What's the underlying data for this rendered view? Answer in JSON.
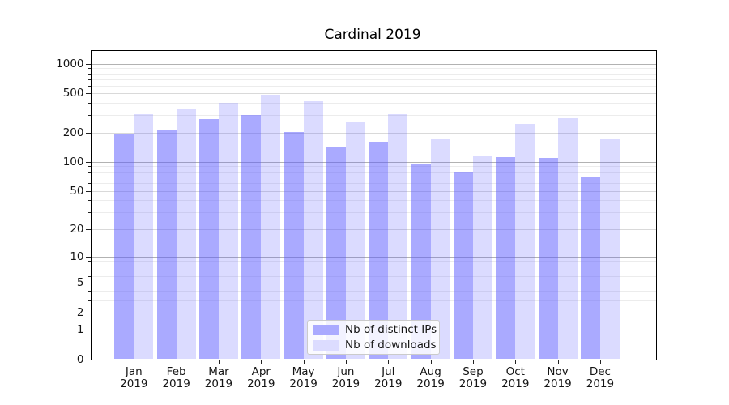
{
  "title": "Cardinal 2019",
  "chart_data": {
    "type": "bar",
    "title": "Cardinal 2019",
    "categories": [
      "Jan 2019",
      "Feb 2019",
      "Mar 2019",
      "Apr 2019",
      "May 2019",
      "Jun 2019",
      "Jul 2019",
      "Aug 2019",
      "Sep 2019",
      "Oct 2019",
      "Nov 2019",
      "Dec 2019"
    ],
    "series": [
      {
        "name": "Nb of distinct IPs",
        "color": "#aaaaff",
        "values": [
          192,
          214,
          275,
          300,
          201,
          143,
          162,
          96,
          79,
          112,
          110,
          70
        ]
      },
      {
        "name": "Nb of downloads",
        "color": "#dcdcff",
        "values": [
          310,
          350,
          400,
          480,
          420,
          260,
          310,
          172,
          115,
          245,
          280,
          170
        ]
      }
    ],
    "yscale": "log1p",
    "ylim": [
      0,
      1375
    ],
    "y_ticks": [
      1000,
      500,
      200,
      100,
      50,
      20,
      10,
      5,
      2,
      1,
      0
    ],
    "y_tick_labels": [
      "1000",
      "500",
      "200",
      "100",
      "50",
      "20",
      "10",
      "5",
      "2",
      "1",
      "0"
    ],
    "x_tick_labels_line1": [
      "Jan",
      "Feb",
      "Mar",
      "Apr",
      "May",
      "Jun",
      "Jul",
      "Aug",
      "Sep",
      "Oct",
      "Nov",
      "Dec"
    ],
    "x_tick_labels_line2": "2019",
    "grid": "horizontal",
    "legend": {
      "position": "lower center",
      "labels": [
        "Nb of distinct IPs",
        "Nb of downloads"
      ]
    }
  }
}
